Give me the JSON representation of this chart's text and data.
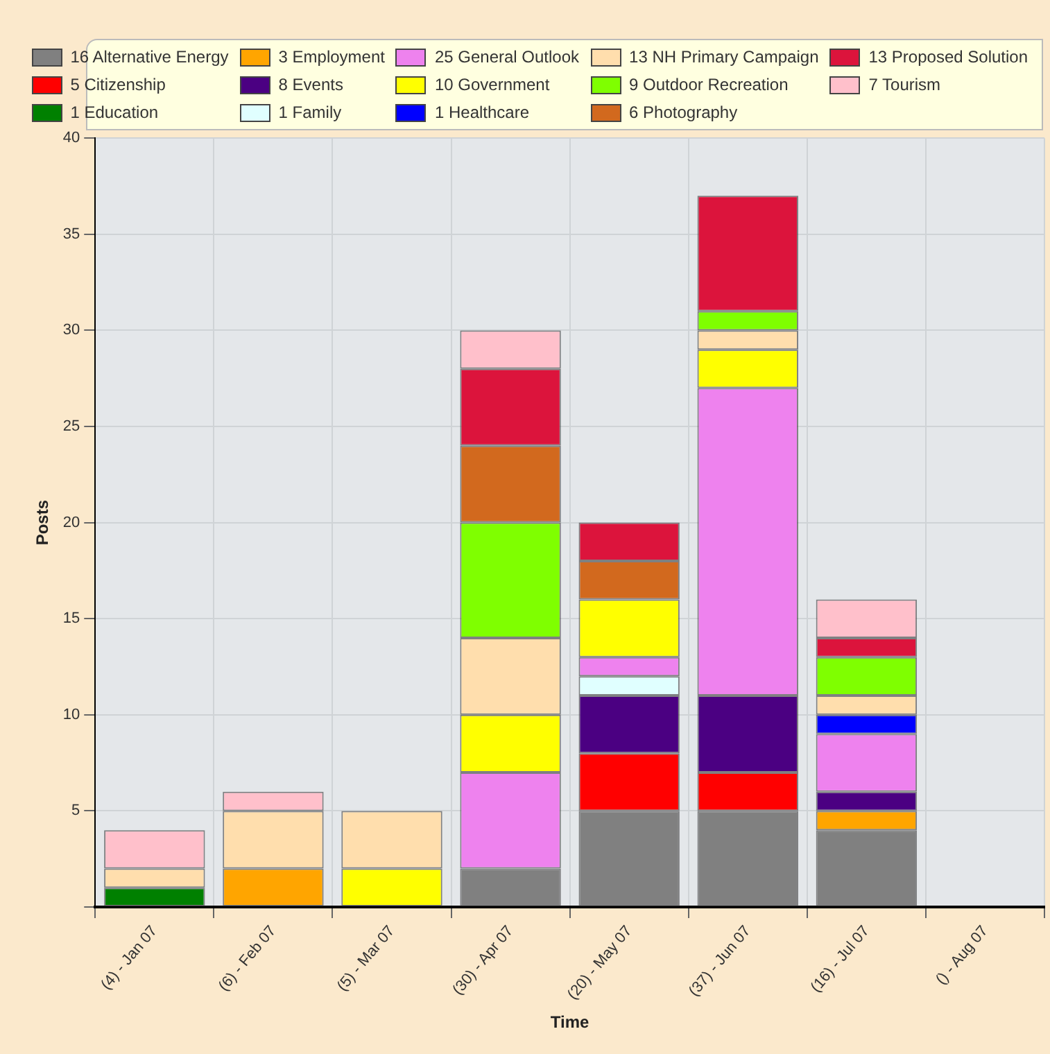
{
  "chart_data": {
    "type": "bar",
    "stacked": true,
    "xlabel": "Time",
    "ylabel": "Posts",
    "categories": [
      "(4) - Jan 07",
      "(6) - Feb 07",
      "(5) - Mar 07",
      "(30) - Apr 07",
      "(20) - May 07",
      "(37) - Jun 07",
      "(16) - Jul 07",
      "() - Aug 07"
    ],
    "ylim": [
      0,
      40
    ],
    "yticks": [
      {
        "value": 0,
        "label": null
      },
      5,
      10,
      15,
      20,
      25,
      30,
      35,
      40
    ],
    "grid": true,
    "legend": "top",
    "series": [
      {
        "name": "16 Alternative Energy",
        "color": "#808080",
        "values": [
          null,
          null,
          null,
          2,
          5,
          5,
          4,
          null
        ]
      },
      {
        "name": "5 Citizenship",
        "color": "#ff0000",
        "values": [
          null,
          null,
          null,
          null,
          3,
          2,
          null,
          null
        ]
      },
      {
        "name": "1 Education",
        "color": "#008000",
        "values": [
          1,
          null,
          null,
          null,
          null,
          null,
          null,
          null
        ]
      },
      {
        "name": "3 Employment",
        "color": "#ffa500",
        "values": [
          null,
          2,
          null,
          null,
          null,
          null,
          1,
          null
        ]
      },
      {
        "name": "8 Events",
        "color": "#4b0082",
        "values": [
          null,
          null,
          null,
          null,
          3,
          4,
          1,
          null
        ]
      },
      {
        "name": "1 Family",
        "color": "#e0ffff",
        "values": [
          null,
          null,
          null,
          null,
          1,
          null,
          null,
          null
        ]
      },
      {
        "name": "25 General Outlook",
        "color": "#ee82ee",
        "values": [
          null,
          null,
          null,
          5,
          1,
          16,
          3,
          null
        ]
      },
      {
        "name": "10 Government",
        "color": "#ffff00",
        "values": [
          null,
          null,
          2,
          3,
          3,
          2,
          null,
          null
        ]
      },
      {
        "name": "1 Healthcare",
        "color": "#0000ff",
        "values": [
          null,
          null,
          null,
          null,
          null,
          null,
          1,
          null
        ]
      },
      {
        "name": "13 NH Primary Campaign",
        "color": "#ffdead",
        "values": [
          1,
          3,
          3,
          4,
          null,
          1,
          1,
          null
        ]
      },
      {
        "name": "9 Outdoor Recreation",
        "color": "#7fff00",
        "values": [
          null,
          null,
          null,
          6,
          null,
          1,
          2,
          null
        ]
      },
      {
        "name": "6 Photography",
        "color": "#d2691e",
        "values": [
          null,
          null,
          null,
          4,
          2,
          null,
          null,
          null
        ]
      },
      {
        "name": "13 Proposed Solution",
        "color": "#dc143c",
        "values": [
          null,
          null,
          null,
          4,
          2,
          6,
          1,
          null
        ]
      },
      {
        "name": "7 Tourism",
        "color": "#ffc0cb",
        "values": [
          2,
          1,
          null,
          2,
          null,
          null,
          2,
          null
        ]
      }
    ]
  }
}
